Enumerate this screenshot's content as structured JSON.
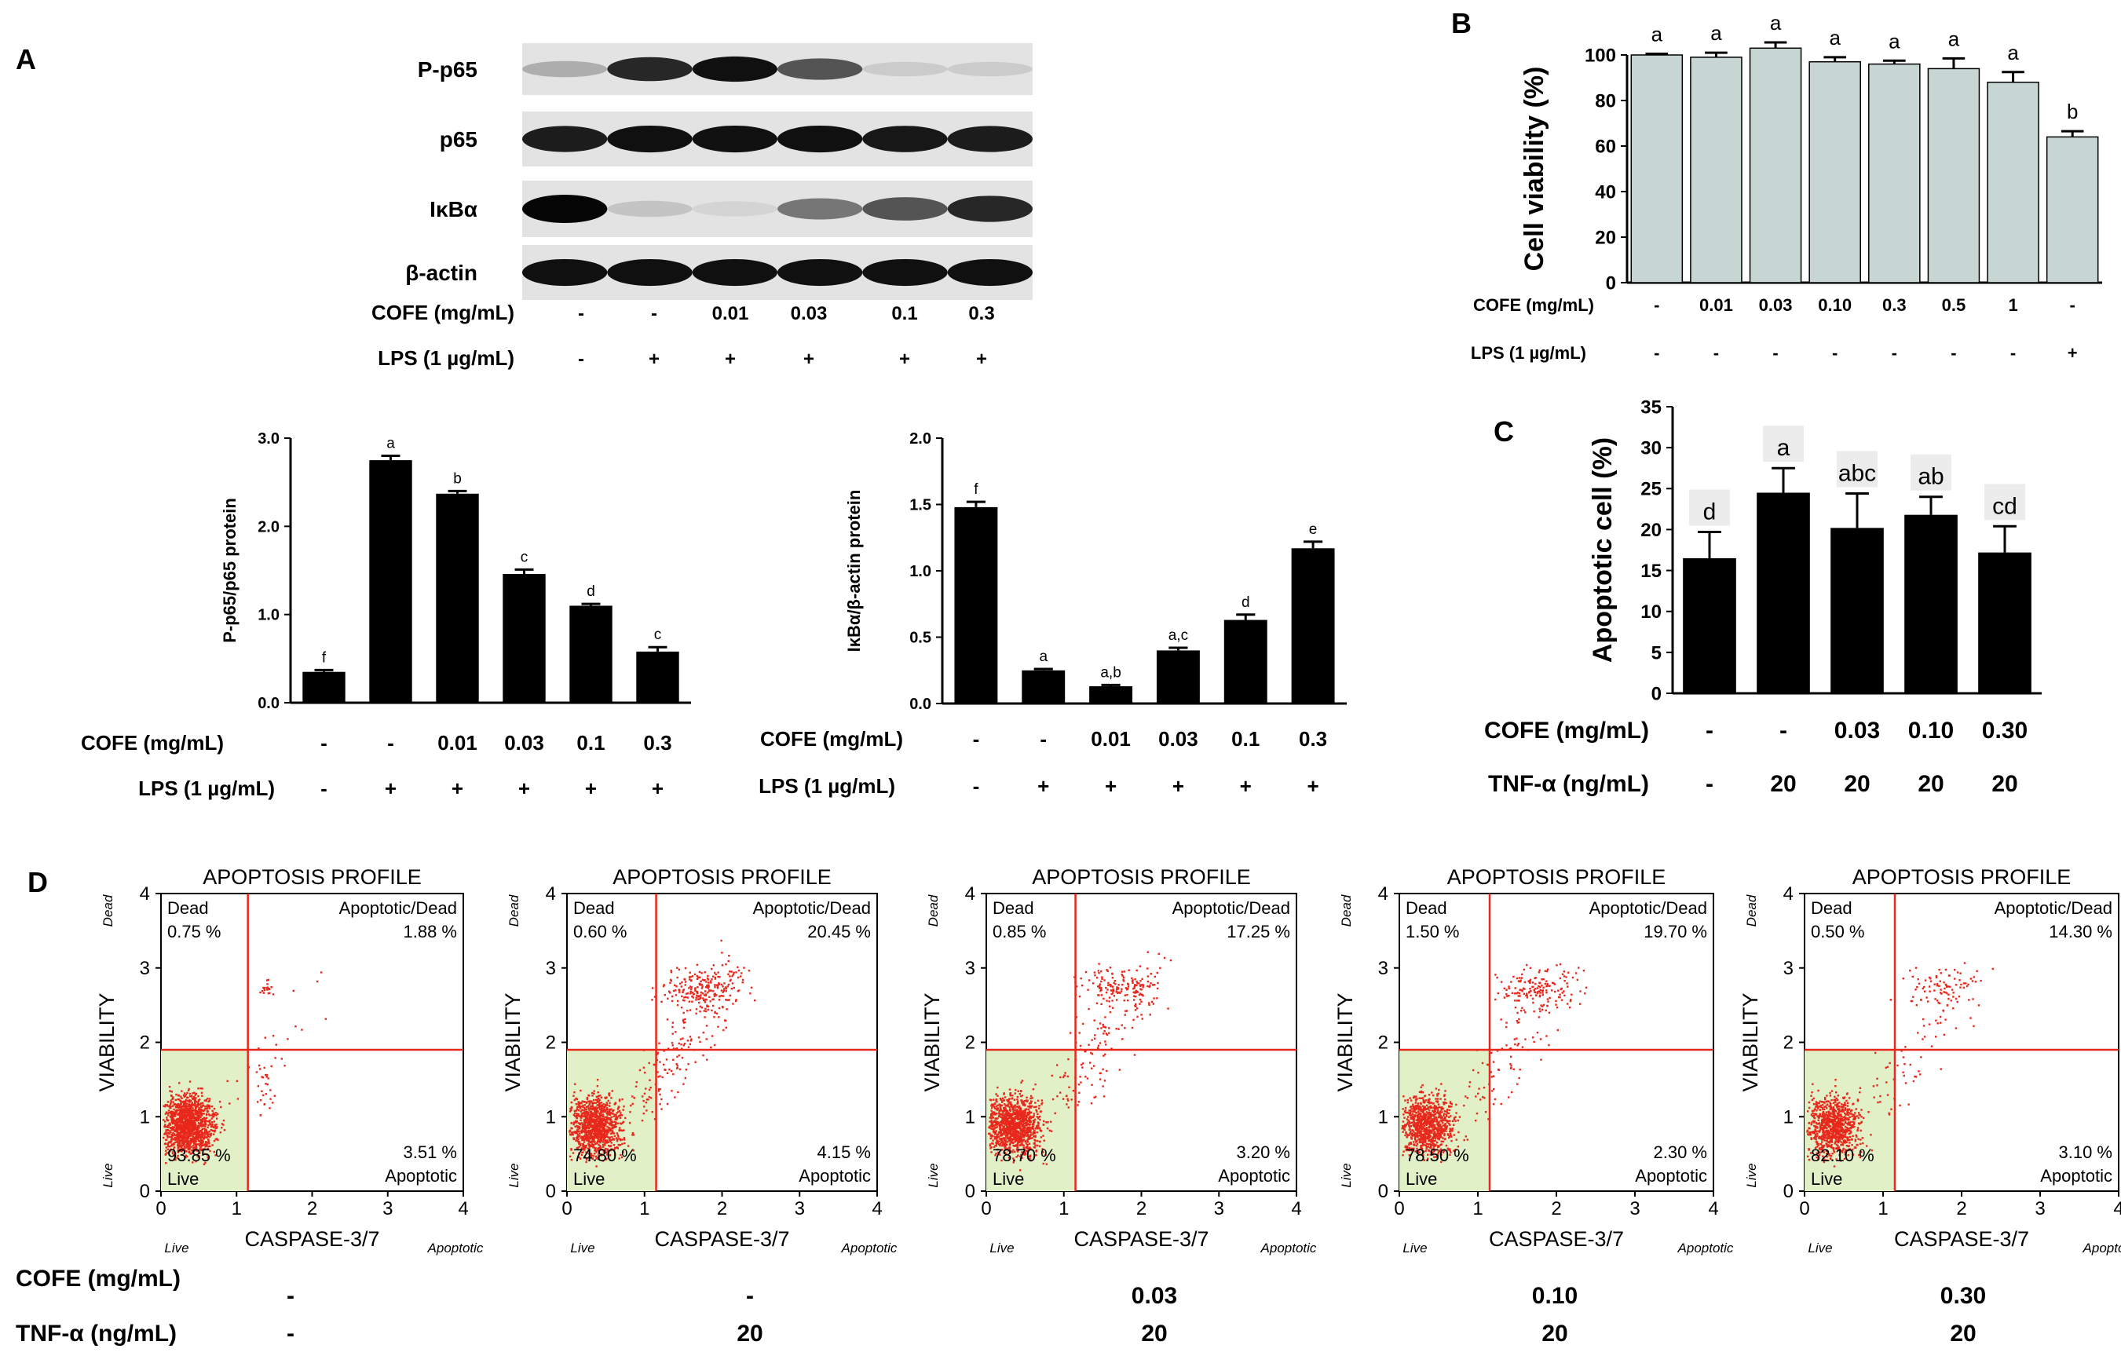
{
  "panels": {
    "A": {
      "letter": "A",
      "blot": {
        "bands": [
          "P-p65",
          "p65",
          "IκBα",
          "β-actin"
        ],
        "conditions": {
          "cofe_label": "COFE (mg/mL)",
          "cofe": [
            "-",
            "-",
            "0.01",
            "0.03",
            "0.1",
            "0.3"
          ],
          "lps_label": "LPS (1 µg/mL)",
          "lps": [
            "-",
            "+",
            "+",
            "+",
            "+",
            "+"
          ]
        }
      }
    },
    "B": {
      "letter": "B"
    },
    "C": {
      "letter": "C"
    },
    "D": {
      "letter": "D",
      "cofe_label": "COFE (mg/mL)",
      "cofe": [
        "-",
        "-",
        "0.03",
        "0.10",
        "0.30"
      ],
      "tnf_label": "TNF-α (ng/mL)",
      "tnf": [
        "-",
        "20",
        "20",
        "20",
        "20"
      ]
    }
  },
  "chart_data": [
    {
      "panel": "A (left)",
      "type": "bar",
      "categories": [
        "1",
        "2",
        "3",
        "4",
        "5",
        "6"
      ],
      "values": [
        0.35,
        2.75,
        2.37,
        1.46,
        1.1,
        0.58
      ],
      "errors": [
        0.02,
        0.05,
        0.03,
        0.05,
        0.02,
        0.05
      ],
      "letters": [
        "f",
        "a",
        "b",
        "c",
        "d",
        "c"
      ],
      "ylabel": "P-p65/p65 protein",
      "ylim": [
        0,
        3.0
      ],
      "yticks": [
        "0.0",
        "1.0",
        "2.0",
        "3.0"
      ],
      "conditions": {
        "cofe_label": "COFE (mg/mL)",
        "cofe": [
          "-",
          "-",
          "0.01",
          "0.03",
          "0.1",
          "0.3"
        ],
        "lps_label": "LPS (1 µg/mL)",
        "lps": [
          "-",
          "+",
          "+",
          "+",
          "+",
          "+"
        ]
      },
      "bar_color": "#000000"
    },
    {
      "panel": "A (right)",
      "type": "bar",
      "categories": [
        "1",
        "2",
        "3",
        "4",
        "5",
        "6"
      ],
      "values": [
        1.48,
        0.25,
        0.13,
        0.4,
        0.63,
        1.17
      ],
      "errors": [
        0.04,
        0.01,
        0.01,
        0.02,
        0.04,
        0.05
      ],
      "letters": [
        "f",
        "a",
        "a,b",
        "a,c",
        "d",
        "e"
      ],
      "ylabel": "IκBα/β-actin protein",
      "ylim": [
        0,
        2.0
      ],
      "yticks": [
        "0.0",
        "0.5",
        "1.0",
        "1.5",
        "2.0"
      ],
      "conditions": {
        "cofe_label": "COFE (mg/mL)",
        "cofe": [
          "-",
          "-",
          "0.01",
          "0.03",
          "0.1",
          "0.3"
        ],
        "lps_label": "LPS (1 µg/mL)",
        "lps": [
          "-",
          "+",
          "+",
          "+",
          "+",
          "+"
        ]
      },
      "bar_color": "#000000"
    },
    {
      "panel": "B",
      "type": "bar",
      "categories": [
        "1",
        "2",
        "3",
        "4",
        "5",
        "6",
        "7",
        "8"
      ],
      "values": [
        100,
        99,
        103,
        97,
        96,
        94,
        88,
        64
      ],
      "errors": [
        0.5,
        2,
        2.5,
        2,
        1.5,
        4.5,
        4.5,
        2.5
      ],
      "letters": [
        "a",
        "a",
        "a",
        "a",
        "a",
        "a",
        "a",
        "b"
      ],
      "ylabel": "Cell viability (%)",
      "ylim": [
        0,
        100
      ],
      "yticks": [
        "0",
        "20",
        "40",
        "60",
        "80",
        "100"
      ],
      "conditions": {
        "cofe_label": "COFE (mg/mL)",
        "cofe": [
          "-",
          "0.01",
          "0.03",
          "0.10",
          "0.3",
          "0.5",
          "1",
          "-"
        ],
        "lps_label": "LPS (1 µg/mL)",
        "lps": [
          "-",
          "-",
          "-",
          "-",
          "-",
          "-",
          "-",
          "+"
        ]
      },
      "bar_color": "#c8d6d3"
    },
    {
      "panel": "C",
      "type": "bar",
      "categories": [
        "1",
        "2",
        "3",
        "4",
        "5"
      ],
      "values": [
        16.5,
        24.5,
        20.2,
        21.8,
        17.2
      ],
      "errors": [
        3.2,
        3.0,
        4.2,
        2.2,
        3.2
      ],
      "letters": [
        "d",
        "a",
        "abc",
        "ab",
        "cd"
      ],
      "ylabel": "Apoptotic cell (%)",
      "ylim": [
        0,
        35
      ],
      "yticks": [
        "0",
        "5",
        "10",
        "15",
        "20",
        "25",
        "30",
        "35"
      ],
      "conditions": {
        "cofe_label": "COFE (mg/mL)",
        "cofe": [
          "-",
          "-",
          "0.03",
          "0.10",
          "0.30"
        ],
        "tnf_label": "TNF-α (ng/mL)",
        "tnf": [
          "-",
          "20",
          "20",
          "20",
          "20"
        ]
      },
      "bar_color": "#000000"
    },
    {
      "panel": "D",
      "type": "scatter",
      "title": "APOPTOSIS PROFILE",
      "xlabel": "CASPASE-3/7",
      "ylabel": "VIABILITY",
      "xlim": [
        0,
        4
      ],
      "ylim": [
        0,
        4
      ],
      "ticks": [
        "0",
        "1",
        "2",
        "3",
        "4"
      ],
      "x_end_labels": [
        "Live",
        "Apoptotic"
      ],
      "y_end_labels": [
        "Live",
        "Dead"
      ],
      "quadrant_names": [
        "Dead",
        "Apoptotic/Dead",
        "Live",
        "Apoptotic"
      ],
      "gate_x": 1.15,
      "gate_y": 1.9,
      "plots": [
        {
          "dead": "0.75 %",
          "apoptotic_dead": "1.88 %",
          "live": "93.85 %",
          "apoptotic": "3.51 %"
        },
        {
          "dead": "0.60 %",
          "apoptotic_dead": "20.45 %",
          "live": "74.80 %",
          "apoptotic": "4.15 %"
        },
        {
          "dead": "0.85 %",
          "apoptotic_dead": "17.25 %",
          "live": "78.70 %",
          "apoptotic": "3.20 %"
        },
        {
          "dead": "1.50 %",
          "apoptotic_dead": "19.70 %",
          "live": "78.50 %",
          "apoptotic": "2.30 %"
        },
        {
          "dead": "0.50 %",
          "apoptotic_dead": "14.30 %",
          "live": "82.10 %",
          "apoptotic": "3.10 %"
        }
      ],
      "point_color": "#e8281c",
      "live_fill": "#e2f0c8"
    }
  ]
}
